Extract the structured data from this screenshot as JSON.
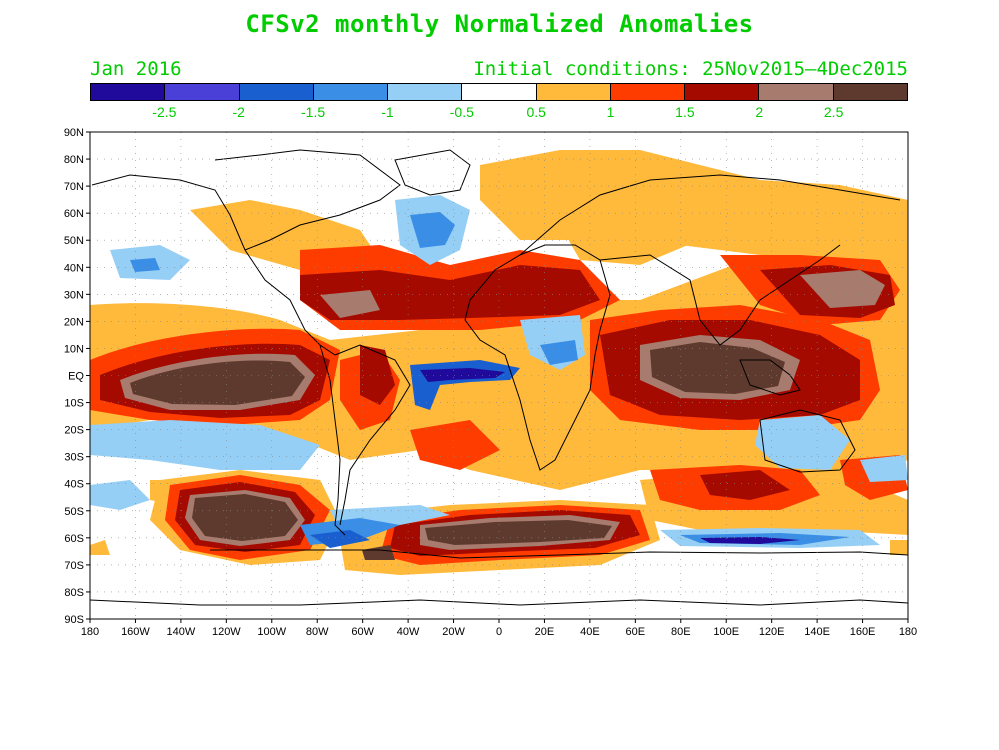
{
  "title": "CFSv2 monthly Normalized Anomalies",
  "valid_month": "Jan 2016",
  "initial_conditions": "Initial conditions: 25Nov2015—4Dec2015",
  "colorbar": {
    "colors": [
      "#1f0a9c",
      "#4a3fd6",
      "#1a5fcf",
      "#3a8ee6",
      "#96cff5",
      "#ffffff",
      "#ffb93b",
      "#ff3c00",
      "#a50a00",
      "#a77b6e",
      "#5e3a2e"
    ],
    "labels": [
      "-2.5",
      "-2",
      "-1.5",
      "-1",
      "-0.5",
      "0.5",
      "1",
      "1.5",
      "2",
      "2.5"
    ]
  },
  "axes": {
    "lat_labels": [
      "90N",
      "80N",
      "70N",
      "60N",
      "50N",
      "40N",
      "30N",
      "20N",
      "10N",
      "EQ",
      "10S",
      "20S",
      "30S",
      "40S",
      "50S",
      "60S",
      "70S",
      "80S",
      "90S"
    ],
    "lon_labels": [
      "180",
      "160W",
      "140W",
      "120W",
      "100W",
      "80W",
      "60W",
      "40W",
      "20W",
      "0",
      "20E",
      "40E",
      "60E",
      "80E",
      "100E",
      "120E",
      "140E",
      "160E",
      "180"
    ]
  }
}
